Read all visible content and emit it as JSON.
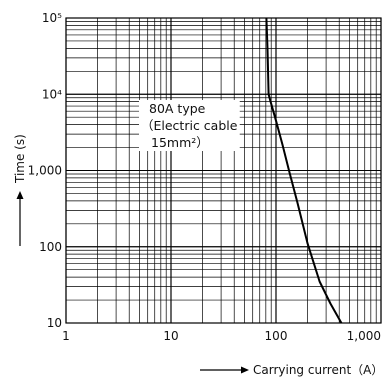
{
  "chart_data": {
    "type": "line",
    "xlabel": "Carrying current（A）",
    "ylabel": "Time (s)",
    "x_scale": "log",
    "y_scale": "log",
    "xlim": [
      1,
      1000
    ],
    "ylim": [
      10,
      100000
    ],
    "grid": true,
    "x_ticks": [
      {
        "value": 1,
        "label": "1"
      },
      {
        "value": 10,
        "label": "10"
      },
      {
        "value": 100,
        "label": "100"
      },
      {
        "value": 1000,
        "label": "1,000"
      }
    ],
    "y_ticks": [
      {
        "value": 10,
        "label": "10"
      },
      {
        "value": 100,
        "label": "100"
      },
      {
        "value": 1000,
        "label": "1,000"
      },
      {
        "value": 10000,
        "label": "10⁴"
      },
      {
        "value": 100000,
        "label": "10⁵"
      }
    ],
    "series": [
      {
        "name": "80A type",
        "x": [
          81,
          83,
          85,
          90,
          100,
          115,
          135,
          160,
          200,
          260,
          330,
          420
        ],
        "y": [
          100000,
          40000,
          10000,
          7500,
          4500,
          2200,
          920,
          380,
          110,
          35,
          18,
          10
        ]
      }
    ],
    "annotations": [
      {
        "lines": [
          "80A type",
          "（Electric cable",
          "15mm²）"
        ]
      }
    ]
  }
}
